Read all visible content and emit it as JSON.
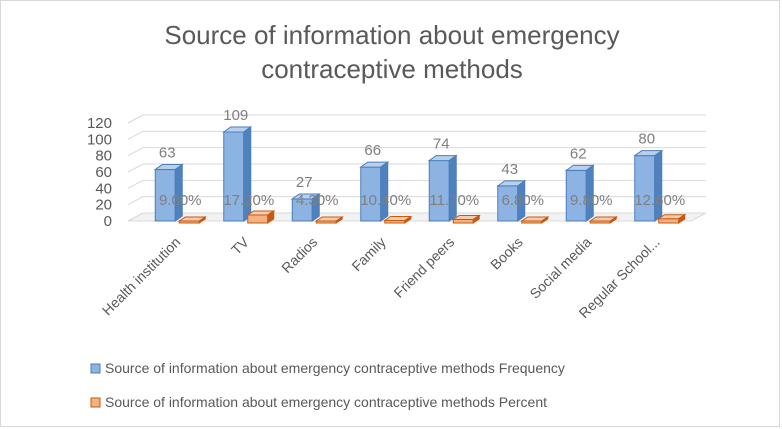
{
  "chart_data": {
    "type": "bar",
    "title_lines": [
      "Source of information about emergency",
      "contraceptive methods"
    ],
    "categories": [
      "Health institution",
      "TV",
      "Radios",
      "Family",
      "Friend peers",
      "Books",
      "Social media",
      "Regular School..."
    ],
    "series": [
      {
        "name": "Source of information about emergency contraceptive methods  Frequency",
        "values": [
          63,
          109,
          27,
          66,
          74,
          43,
          62,
          80
        ],
        "labels": [
          "63",
          "109",
          "27",
          "66",
          "74",
          "43",
          "62",
          "80"
        ],
        "color": "#8db3e2"
      },
      {
        "name": "Source of information about emergency contraceptive methods  Percent",
        "values": [
          9.0,
          17.2,
          4.3,
          10.4,
          11.7,
          6.8,
          9.8,
          12.6
        ],
        "labels": [
          "9.00%",
          "17.20%",
          "4.30%",
          "10.40%",
          "11.70%",
          "6.80%",
          "9.80%",
          "12.60%"
        ],
        "color": "#f4b183"
      }
    ],
    "y_ticks": [
      0,
      20,
      40,
      60,
      80,
      100,
      120
    ],
    "ylim": [
      0,
      120
    ],
    "grid": true,
    "legend_position": "bottom"
  }
}
